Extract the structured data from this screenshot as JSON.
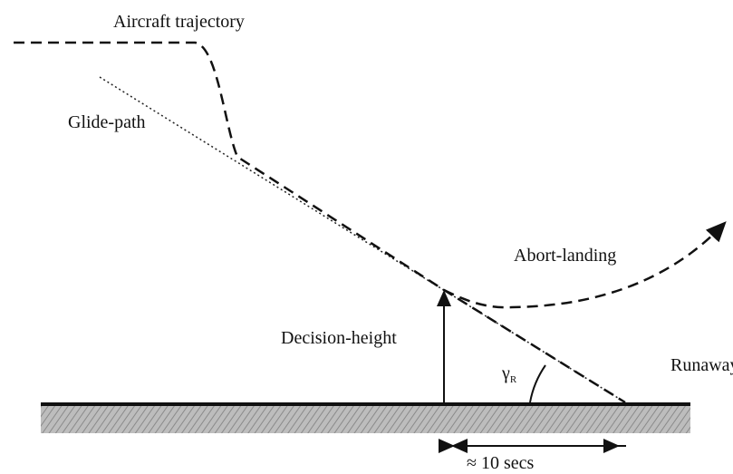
{
  "labels": {
    "trajectory": "Aircraft trajectory",
    "glide_path": "Glide-path",
    "abort": "Abort-landing",
    "decision_height": "Decision-height",
    "runway": "Runaway",
    "angle": {
      "symbol": "γ",
      "subscript": "R"
    },
    "duration": "≈ 10 secs"
  }
}
